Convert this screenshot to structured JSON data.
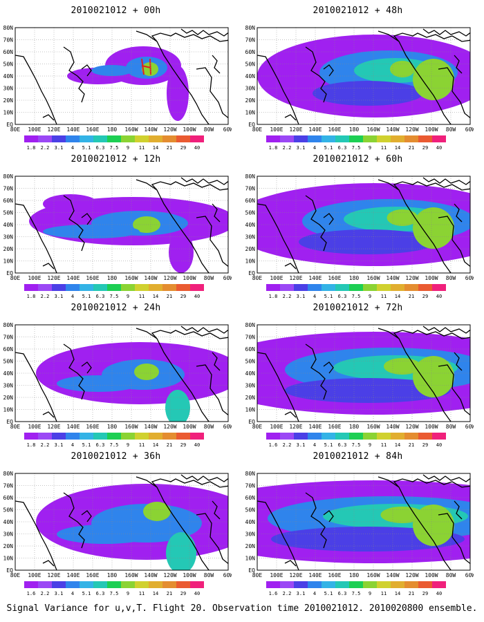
{
  "footer": "Signal Variance for u,v,T. Flight 20. Observation time 2010021012. 2010020800 ensemble.",
  "colors": [
    "#a020f0",
    "#9b48f5",
    "#4b3fe6",
    "#2f84ec",
    "#33b3e6",
    "#24c8b5",
    "#1dcf53",
    "#8bd333",
    "#d0d12f",
    "#e1ae2f",
    "#e48d30",
    "#ea5a31",
    "#f0207b"
  ],
  "colorbar_labels": [
    "1.8",
    "2.2",
    "3.1",
    "4",
    "5.1",
    "6.3",
    "7.5",
    "9",
    "11",
    "14",
    "21",
    "29",
    "40"
  ],
  "colorbar_labels_alt": [
    "1.6",
    "2.2",
    "3.1",
    "4",
    "5.1",
    "6.3",
    "7.5",
    "9",
    "11",
    "14",
    "21",
    "29",
    "40"
  ],
  "x_ticks": [
    "80E",
    "100E",
    "120E",
    "140E",
    "160E",
    "180",
    "160W",
    "140W",
    "120W",
    "100W",
    "80W",
    "60W"
  ],
  "y_ticks": [
    "80N",
    "70N",
    "60N",
    "50N",
    "40N",
    "30N",
    "20N",
    "10N",
    "EQ"
  ],
  "chart_data": [
    {
      "type": "heatmap",
      "title": "2010021012 + 00h",
      "x": [
        "80E",
        "100E",
        "120E",
        "140E",
        "160E",
        "180",
        "160W",
        "140W",
        "120W",
        "100W",
        "80W",
        "60W"
      ],
      "y": [
        "80N",
        "70N",
        "60N",
        "50N",
        "40N",
        "30N",
        "20N",
        "10N",
        "EQ"
      ],
      "colorbar": [
        "1.8",
        "2.2",
        "3.1",
        "4",
        "5.1",
        "6.3",
        "7.5",
        "9",
        "11",
        "14",
        "21",
        "29",
        "40"
      ]
    },
    {
      "type": "heatmap",
      "title": "2010021012 + 12h",
      "x": [
        "80E",
        "100E",
        "120E",
        "140E",
        "160E",
        "180",
        "160W",
        "140W",
        "120W",
        "100W",
        "80W",
        "60W"
      ],
      "y": [
        "80N",
        "70N",
        "60N",
        "50N",
        "40N",
        "30N",
        "20N",
        "10N",
        "EQ"
      ],
      "colorbar": [
        "1.8",
        "2.2",
        "3.1",
        "4",
        "5.1",
        "6.3",
        "7.5",
        "9",
        "11",
        "14",
        "21",
        "29",
        "40"
      ]
    },
    {
      "type": "heatmap",
      "title": "2010021012 + 24h",
      "x": [
        "80E",
        "100E",
        "120E",
        "140E",
        "160E",
        "180",
        "160W",
        "140W",
        "120W",
        "100W",
        "80W",
        "60W"
      ],
      "y": [
        "80N",
        "70N",
        "60N",
        "50N",
        "40N",
        "30N",
        "20N",
        "10N",
        "EQ"
      ],
      "colorbar": [
        "1.8",
        "2.2",
        "3.1",
        "4",
        "5.1",
        "6.3",
        "7.5",
        "9",
        "11",
        "14",
        "21",
        "29",
        "40"
      ]
    },
    {
      "type": "heatmap",
      "title": "2010021012 + 36h",
      "x": [
        "80E",
        "100E",
        "120E",
        "140E",
        "160E",
        "180",
        "160W",
        "140W",
        "120W",
        "100W",
        "80W",
        "60W"
      ],
      "y": [
        "80N",
        "70N",
        "60N",
        "50N",
        "40N",
        "30N",
        "20N",
        "10N",
        "EQ"
      ],
      "colorbar": [
        "1.6",
        "2.2",
        "3.1",
        "4",
        "5.1",
        "6.3",
        "7.5",
        "9",
        "11",
        "14",
        "21",
        "29",
        "40"
      ]
    },
    {
      "type": "heatmap",
      "title": "2010021012 + 48h",
      "x": [
        "80E",
        "100E",
        "120E",
        "140E",
        "160E",
        "180",
        "160W",
        "140W",
        "120W",
        "100W",
        "80W",
        "60W"
      ],
      "y": [
        "80N",
        "70N",
        "60N",
        "50N",
        "40N",
        "30N",
        "20N",
        "10N",
        "EQ"
      ],
      "colorbar": [
        "1.8",
        "2.2",
        "3.1",
        "4",
        "5.1",
        "6.3",
        "7.5",
        "9",
        "11",
        "14",
        "21",
        "29",
        "40"
      ]
    },
    {
      "type": "heatmap",
      "title": "2010021012 + 60h",
      "x": [
        "80E",
        "100E",
        "120E",
        "140E",
        "160E",
        "180",
        "160W",
        "140W",
        "120W",
        "100W",
        "80W",
        "60W"
      ],
      "y": [
        "80N",
        "70N",
        "60N",
        "50N",
        "40N",
        "30N",
        "20N",
        "10N",
        "EQ"
      ],
      "colorbar": [
        "1.8",
        "2.2",
        "3.1",
        "4",
        "5.1",
        "6.3",
        "7.5",
        "9",
        "11",
        "14",
        "21",
        "29",
        "40"
      ]
    },
    {
      "type": "heatmap",
      "title": "2010021012 + 72h",
      "x": [
        "80E",
        "100E",
        "120E",
        "140E",
        "160E",
        "180",
        "160W",
        "140W",
        "120W",
        "100W",
        "80W",
        "60W"
      ],
      "y": [
        "80N",
        "70N",
        "60N",
        "50N",
        "40N",
        "30N",
        "20N",
        "10N",
        "EQ"
      ],
      "colorbar": [
        "1.6",
        "2.2",
        "3.1",
        "4",
        "5.1",
        "6.3",
        "7.5",
        "9",
        "11",
        "14",
        "21",
        "29",
        "40"
      ]
    },
    {
      "type": "heatmap",
      "title": "2010021012 + 84h",
      "x": [
        "80E",
        "100E",
        "120E",
        "140E",
        "160E",
        "180",
        "160W",
        "140W",
        "120W",
        "100W",
        "80W",
        "60W"
      ],
      "y": [
        "80N",
        "70N",
        "60N",
        "50N",
        "40N",
        "30N",
        "20N",
        "10N",
        "EQ"
      ],
      "colorbar": [
        "1.6",
        "2.2",
        "3.1",
        "4",
        "5.1",
        "6.3",
        "7.5",
        "9",
        "11",
        "14",
        "21",
        "29",
        "40"
      ]
    }
  ]
}
